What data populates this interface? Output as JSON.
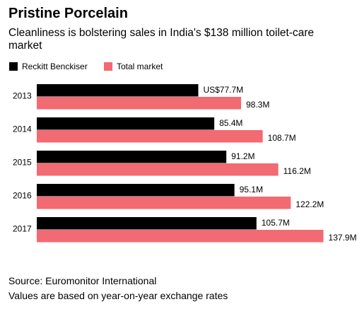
{
  "chart_data": {
    "type": "bar",
    "orientation": "horizontal",
    "title": "Pristine Porcelain",
    "subtitle": "Cleanliness is bolstering sales in India's $138 million toilet-care market",
    "categories": [
      "2013",
      "2014",
      "2015",
      "2016",
      "2017"
    ],
    "series": [
      {
        "name": "Reckitt Benckiser",
        "color": "#000000",
        "values": [
          77.7,
          85.4,
          91.2,
          95.1,
          105.7
        ],
        "value_labels": [
          "US$77.7M",
          "85.4M",
          "91.2M",
          "95.1M",
          "105.7M"
        ]
      },
      {
        "name": "Total market",
        "color": "#f26a72",
        "values": [
          98.3,
          108.7,
          116.2,
          122.2,
          137.9
        ],
        "value_labels": [
          "98.3M",
          "108.7M",
          "116.2M",
          "122.2M",
          "137.9M"
        ]
      }
    ],
    "notes": [
      "Source: Euromonitor International",
      "Values are based on year-on-year exchange rates"
    ]
  }
}
